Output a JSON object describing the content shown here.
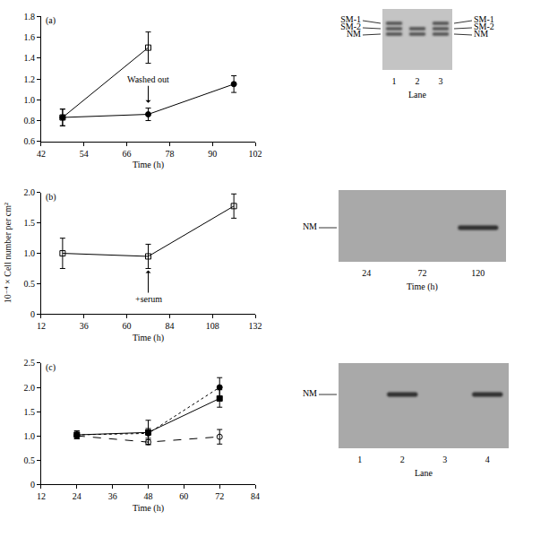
{
  "chart_data": [
    {
      "type": "line",
      "title": "(a)",
      "xlabel": "Time (h)",
      "xlim": [
        42,
        102
      ],
      "xticks": [
        42,
        54,
        66,
        78,
        90,
        102
      ],
      "ylim": [
        0.6,
        1.8
      ],
      "yticks": [
        0.6,
        0.8,
        {
          "value": 1,
          "label": "1.0"
        },
        1.2,
        1.4,
        1.6,
        1.8
      ],
      "grid": false,
      "series": [
        {
          "x": [
            48,
            72
          ],
          "values": [
            0.83,
            1.5
          ],
          "errors": [
            0.08,
            0.15
          ],
          "marker": "square-open",
          "line_style": "solid",
          "color": "#000000"
        },
        {
          "x": [
            48,
            72,
            96
          ],
          "values": [
            0.83,
            0.86,
            1.15
          ],
          "errors": [
            0.08,
            0.06,
            0.08
          ],
          "marker": "circle",
          "line_style": "solid",
          "color": "#000000"
        }
      ],
      "annotations": [
        {
          "text": "Washed out",
          "x": 72,
          "y": 0.97,
          "arrow": "down"
        }
      ]
    },
    {
      "type": "line",
      "title": "(b)",
      "xlabel": "Time (h)",
      "ylabel": "10⁻⁴ × Cell number per cm²",
      "xlim": [
        12,
        132
      ],
      "xticks": [
        12,
        36,
        60,
        84,
        108,
        132
      ],
      "ylim": [
        0,
        2
      ],
      "yticks": [
        0,
        0.5,
        {
          "value": 1,
          "label": "1.0"
        },
        1.5,
        {
          "value": 2,
          "label": "2.0"
        }
      ],
      "grid": false,
      "series": [
        {
          "x": [
            24,
            72,
            120
          ],
          "values": [
            1.0,
            0.95,
            1.78
          ],
          "errors": [
            0.25,
            0.2,
            0.2
          ],
          "marker": "square-open",
          "line_style": "solid",
          "color": "#000000"
        }
      ],
      "annotations": [
        {
          "text": "+serum",
          "x": 72,
          "y": 0.72,
          "arrow": "up"
        }
      ]
    },
    {
      "type": "line",
      "title": "(c)",
      "xlabel": "Time (h)",
      "xlim": [
        12,
        84
      ],
      "xticks": [
        12,
        24,
        36,
        48,
        60,
        72,
        84
      ],
      "ylim": [
        0,
        2.5
      ],
      "yticks": [
        0,
        0.5,
        {
          "value": 1,
          "label": "1.0"
        },
        1.5,
        {
          "value": 2,
          "label": "2.0"
        },
        2.5
      ],
      "grid": false,
      "series": [
        {
          "x": [
            24,
            48,
            72
          ],
          "values": [
            1.02,
            1.07,
            1.77
          ],
          "errors": [
            0.08,
            0.25,
            0.18
          ],
          "marker": "square",
          "line_style": "solid",
          "color": "#000000"
        },
        {
          "x": [
            24,
            48,
            72
          ],
          "values": [
            1.02,
            1.05,
            2.0
          ],
          "errors": [
            0.08,
            0.1,
            0.2
          ],
          "marker": "circle",
          "line_style": "dot",
          "color": "#000000"
        },
        {
          "x": [
            24,
            48,
            72
          ],
          "values": [
            1.0,
            0.87,
            0.98
          ],
          "errors": [
            0.06,
            0.05,
            0.15
          ],
          "marker": "circle-open",
          "line_style": "dash",
          "color": "#000000"
        }
      ]
    }
  ],
  "gels": [
    {
      "band_labels": [
        "SM-1",
        "SM-2",
        "NM"
      ],
      "labels_both_sides": true,
      "lanes": [
        "1",
        "2",
        "3"
      ],
      "lane_title": "Lane",
      "bands": [
        [
          "SM-1",
          "SM-2",
          "NM"
        ],
        [
          "SM-2",
          "NM"
        ],
        [
          "SM-1",
          "SM-2",
          "NM"
        ]
      ]
    },
    {
      "band_labels": [
        "NM"
      ],
      "labels_both_sides": false,
      "lanes": [
        "24",
        "72",
        "120"
      ],
      "lane_title": "Time (h)",
      "bands": [
        [],
        [],
        [
          "NM"
        ]
      ]
    },
    {
      "band_labels": [
        "NM"
      ],
      "labels_both_sides": false,
      "lanes": [
        "1",
        "2",
        "3",
        "4"
      ],
      "lane_title": "Lane",
      "bands": [
        [],
        [
          "NM"
        ],
        [],
        [
          "NM"
        ]
      ]
    }
  ]
}
